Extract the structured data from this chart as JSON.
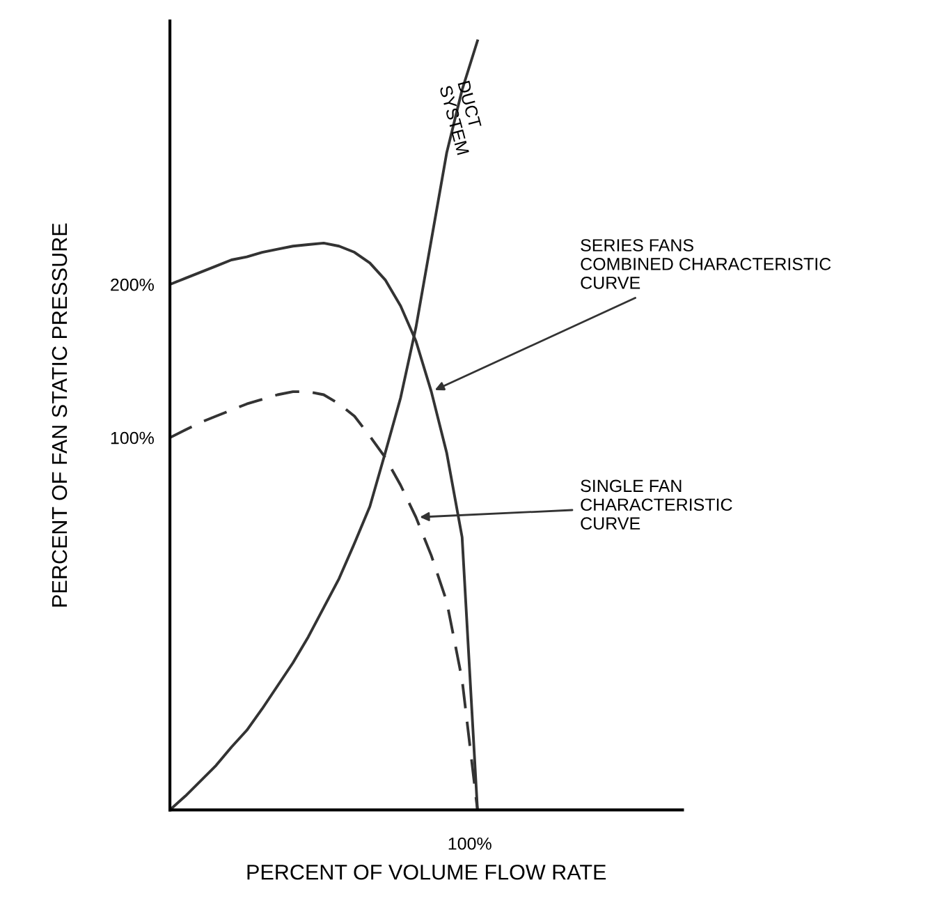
{
  "chart_data": {
    "type": "line",
    "xlabel": "PERCENT OF VOLUME FLOW RATE",
    "ylabel": "PERCENT OF FAN STATIC PRESSURE",
    "annotations": [
      "100%"
    ],
    "categories": [
      null,
      null,
      null,
      null,
      null,
      null,
      null,
      null,
      null,
      null,
      null,
      null,
      null,
      null,
      null,
      null,
      null,
      null,
      null,
      null,
      null
    ],
    "ylim": [
      -143,
      372
    ],
    "yticks": [
      {
        "value": 100,
        "label": "100%"
      },
      {
        "value": 200,
        "label": "200%"
      }
    ],
    "grid": false,
    "legend": false,
    "marker": "none",
    "series": [
      {
        "name": "SERIES FANS\nCOMBINED CHARACTERISTIC\nCURVE",
        "color": "#333333",
        "line_style": "solid",
        "values": [
          200,
          204,
          208,
          212,
          216,
          218,
          221,
          223,
          225,
          226,
          227,
          225,
          221,
          214,
          203,
          186,
          163,
          130,
          90,
          35,
          -143
        ]
      },
      {
        "name": "SINGLE FAN\nCHARACTERISTIC\nCURVE",
        "color": "#333333",
        "line_style": "dashed",
        "values": [
          100,
          105,
          110,
          114,
          118,
          122,
          125,
          128,
          130,
          130,
          128,
          122,
          114,
          101,
          87,
          69,
          48,
          23,
          -7,
          -58,
          -143
        ]
      },
      {
        "name": "DUCT\nSYSTEM",
        "color": "#333333",
        "line_style": "solid",
        "values": [
          -143,
          -134,
          -124,
          -114,
          -102,
          -91,
          -77,
          -62,
          -47,
          -30,
          -11,
          8,
          31,
          55,
          90,
          126,
          172,
          229,
          286,
          327,
          359
        ]
      }
    ]
  }
}
